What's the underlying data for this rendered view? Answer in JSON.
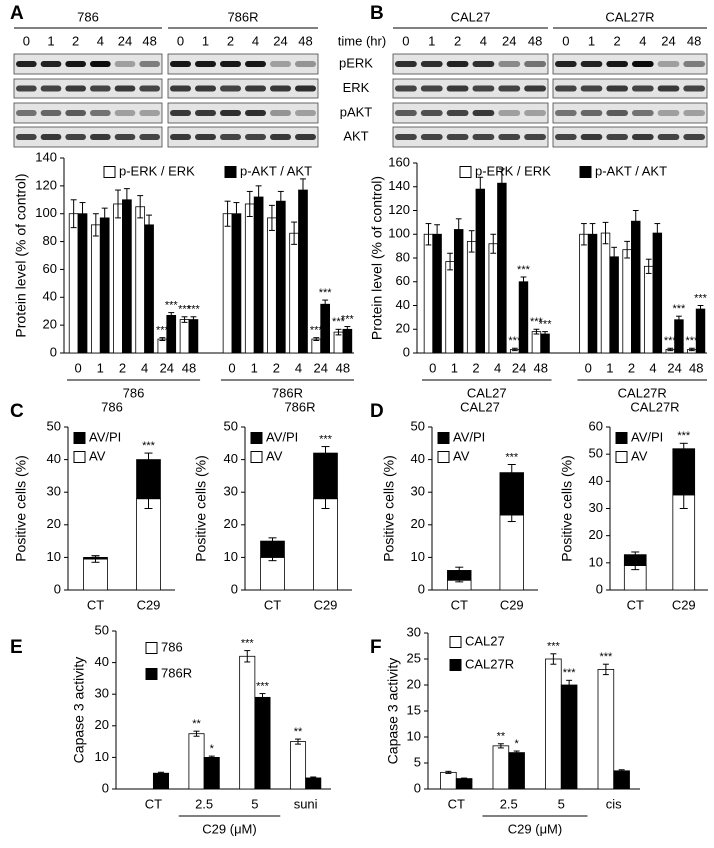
{
  "panel_labels": [
    "A",
    "B",
    "C",
    "D",
    "E",
    "F"
  ],
  "blots": [
    {
      "groups": [
        "786",
        "786R"
      ],
      "times": [
        "0",
        "1",
        "2",
        "4",
        "24",
        "48"
      ]
    },
    {
      "groups": [
        "CAL27",
        "CAL27R"
      ],
      "times": [
        "0",
        "1",
        "2",
        "4",
        "24",
        "48"
      ],
      "time_label": "time (hr)",
      "rows": [
        "pERK",
        "ERK",
        "pAKT",
        "AKT"
      ]
    }
  ],
  "chart_data": [
    {
      "type": "bar",
      "ylabel": "Protein level (% of control)",
      "categories": [
        "0",
        "1",
        "2",
        "4",
        "24",
        "48",
        "0",
        "1",
        "2",
        "4",
        "24",
        "48"
      ],
      "groups": [
        "786",
        "786R"
      ],
      "ylim": [
        0,
        140
      ],
      "yticks": [
        0,
        20,
        40,
        60,
        80,
        100,
        120,
        140
      ],
      "legend": "top",
      "series": [
        {
          "name": "p-ERK / ERK",
          "color": "#ffffff",
          "values": [
            100,
            92,
            107,
            105,
            10,
            24,
            100,
            107,
            97,
            86,
            10,
            15
          ],
          "errors": [
            10,
            8,
            10,
            8,
            1,
            2,
            9,
            9,
            9,
            8,
            1,
            2
          ],
          "significance": [
            null,
            null,
            null,
            null,
            "***",
            "***",
            null,
            null,
            null,
            null,
            "***",
            "***"
          ]
        },
        {
          "name": "p-AKT / AKT",
          "color": "#000000",
          "values": [
            100,
            97,
            110,
            92,
            27,
            24,
            100,
            112,
            109,
            117,
            35,
            17
          ],
          "errors": [
            8,
            7,
            8,
            7,
            2,
            2,
            8,
            8,
            7,
            8,
            3,
            2
          ],
          "significance": [
            null,
            null,
            null,
            null,
            "***",
            "***",
            null,
            null,
            null,
            null,
            "***",
            "***"
          ]
        }
      ]
    },
    {
      "type": "bar",
      "ylabel": "Protein level (% of control)",
      "categories": [
        "0",
        "1",
        "2",
        "4",
        "24",
        "48",
        "0",
        "1",
        "2",
        "4",
        "24",
        "48"
      ],
      "groups": [
        "CAL27",
        "CAL27R"
      ],
      "ylim": [
        0,
        160
      ],
      "yticks": [
        0,
        20,
        40,
        60,
        80,
        100,
        120,
        140,
        160
      ],
      "legend": "top",
      "series": [
        {
          "name": "p-ERK / ERK",
          "color": "#ffffff",
          "values": [
            100,
            77,
            94,
            92,
            3,
            18,
            100,
            101,
            87,
            73,
            3,
            3
          ],
          "errors": [
            9,
            7,
            9,
            8,
            1,
            2,
            9,
            9,
            7,
            6,
            1,
            1
          ],
          "significance": [
            null,
            null,
            null,
            null,
            "***",
            "***",
            null,
            null,
            null,
            null,
            "***",
            "***"
          ]
        },
        {
          "name": "p-AKT / AKT",
          "color": "#000000",
          "values": [
            100,
            104,
            138,
            143,
            60,
            16,
            100,
            81,
            111,
            101,
            28,
            37
          ],
          "errors": [
            8,
            9,
            10,
            12,
            4,
            2,
            9,
            8,
            9,
            8,
            3,
            3
          ],
          "significance": [
            null,
            null,
            null,
            null,
            "***",
            "***",
            null,
            null,
            null,
            null,
            "***",
            "***"
          ]
        }
      ]
    },
    {
      "type": "stacked_bar",
      "title": "786",
      "ylabel": "Positive cells (%)",
      "categories": [
        "CT",
        "C29"
      ],
      "ylim": [
        0,
        50
      ],
      "yticks": [
        0,
        10,
        20,
        30,
        40,
        50
      ],
      "legend": "upper left",
      "annotations": [
        null,
        "***"
      ],
      "series": [
        {
          "name": "AV",
          "color": "#ffffff",
          "values": [
            9.5,
            28
          ],
          "errors": [
            1,
            3
          ]
        },
        {
          "name": "AV/PI",
          "color": "#000000",
          "values": [
            0.5,
            12
          ],
          "errors": [
            0.5,
            2
          ]
        }
      ]
    },
    {
      "type": "stacked_bar",
      "title": "786R",
      "ylabel": "Positive cells (%)",
      "categories": [
        "CT",
        "C29"
      ],
      "ylim": [
        0,
        50
      ],
      "yticks": [
        0,
        10,
        20,
        30,
        40,
        50
      ],
      "legend": "upper left",
      "annotations": [
        null,
        "***"
      ],
      "series": [
        {
          "name": "AV",
          "color": "#ffffff",
          "values": [
            10,
            28
          ],
          "errors": [
            1,
            3
          ]
        },
        {
          "name": "AV/PI",
          "color": "#000000",
          "values": [
            5,
            14
          ],
          "errors": [
            1,
            2
          ]
        }
      ]
    },
    {
      "type": "stacked_bar",
      "title": "CAL27",
      "ylabel": "Positive cells (%)",
      "categories": [
        "CT",
        "C29"
      ],
      "ylim": [
        0,
        50
      ],
      "yticks": [
        0,
        10,
        20,
        30,
        40,
        50
      ],
      "legend": "upper left",
      "annotations": [
        null,
        "***"
      ],
      "series": [
        {
          "name": "AV",
          "color": "#ffffff",
          "values": [
            3,
            23
          ],
          "errors": [
            0.5,
            2
          ]
        },
        {
          "name": "AV/PI",
          "color": "#000000",
          "values": [
            3,
            13
          ],
          "errors": [
            1,
            2.5
          ]
        }
      ]
    },
    {
      "type": "stacked_bar",
      "title": "CAL27R",
      "ylabel": "Positive cells (%)",
      "categories": [
        "CT",
        "C29"
      ],
      "ylim": [
        0,
        60
      ],
      "yticks": [
        0,
        10,
        20,
        30,
        40,
        50,
        60
      ],
      "legend": "upper left",
      "annotations": [
        null,
        "***"
      ],
      "series": [
        {
          "name": "AV",
          "color": "#ffffff",
          "values": [
            9,
            35
          ],
          "errors": [
            1.5,
            5
          ]
        },
        {
          "name": "AV/PI",
          "color": "#000000",
          "values": [
            4,
            17
          ],
          "errors": [
            1,
            2
          ]
        }
      ]
    },
    {
      "type": "bar",
      "ylabel": "Capase 3 activity",
      "categories": [
        "CT",
        "2.5",
        "5",
        "suni"
      ],
      "x_group_label": "C29 (μM)",
      "ylim": [
        0,
        50
      ],
      "yticks": [
        0,
        10,
        20,
        30,
        40,
        50
      ],
      "legend": "upper left",
      "series": [
        {
          "name": "786",
          "color": "#ffffff",
          "values": [
            0,
            17.5,
            42,
            15
          ],
          "errors": [
            0,
            0.8,
            1.8,
            0.8
          ],
          "significance": [
            null,
            "**",
            "***",
            "**"
          ]
        },
        {
          "name": "786R",
          "color": "#000000",
          "values": [
            5,
            10,
            29,
            3.5
          ],
          "errors": [
            0.3,
            0.4,
            1.2,
            0.3
          ],
          "significance": [
            null,
            "*",
            "***",
            null
          ]
        }
      ]
    },
    {
      "type": "bar",
      "ylabel": "Capase 3 activity",
      "categories": [
        "CT",
        "2.5",
        "5",
        "cis"
      ],
      "x_group_label": "C29 (μM)",
      "ylim": [
        0,
        30
      ],
      "yticks": [
        0,
        5,
        10,
        15,
        20,
        25,
        30
      ],
      "legend": "upper left",
      "series": [
        {
          "name": "CAL27",
          "color": "#ffffff",
          "values": [
            3.2,
            8.3,
            25,
            23
          ],
          "errors": [
            0.2,
            0.4,
            1,
            1
          ],
          "significance": [
            null,
            "**",
            "***",
            "***"
          ]
        },
        {
          "name": "CAL27R",
          "color": "#000000",
          "values": [
            2,
            7,
            20,
            3.5
          ],
          "errors": [
            0.1,
            0.3,
            0.9,
            0.2
          ],
          "significance": [
            null,
            "*",
            "***",
            null
          ]
        }
      ]
    }
  ]
}
